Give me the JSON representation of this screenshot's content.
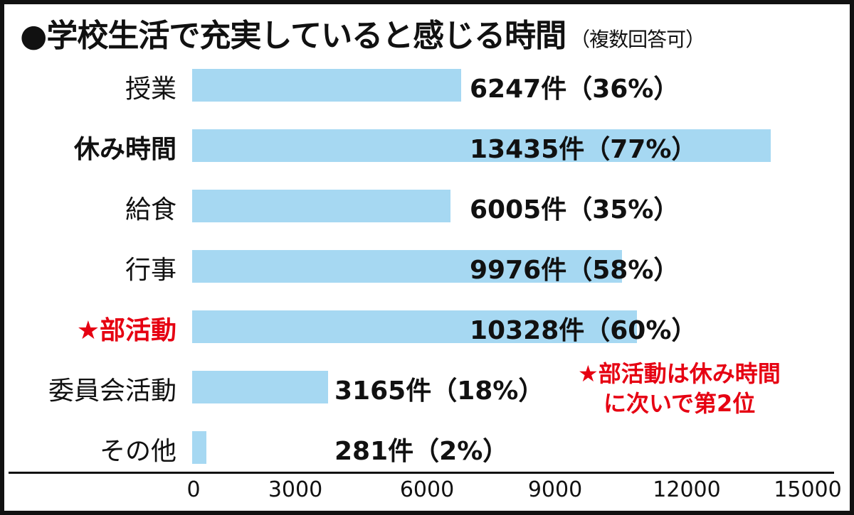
{
  "title": "●学校生活で充実していると感じる時間",
  "subtitle": "（複数回答可）",
  "note": [
    "★部活動は休み時間",
    "に次いで第2位"
  ],
  "colors": {
    "bar": "#a6d8f2",
    "highlight": "#e60012",
    "text": "#111111"
  },
  "chart_data": {
    "type": "bar",
    "orientation": "horizontal",
    "categories": [
      "授業",
      "休み時間",
      "給食",
      "行事",
      "★部活動",
      "委員会活動",
      "その他"
    ],
    "values": [
      6247,
      13435,
      6005,
      9976,
      10328,
      3165,
      281
    ],
    "value_labels": [
      "6247件（36%）",
      "13435件（77%）",
      "6005件（35%）",
      "9976件（58%）",
      "10328件（60%）",
      "3165件（18%）",
      "281件（2%）"
    ],
    "percentages": [
      36,
      77,
      35,
      58,
      60,
      18,
      2
    ],
    "xlim": [
      0,
      15000
    ],
    "xticks": [
      "0",
      "3000",
      "6000",
      "9000",
      "12000",
      "15000"
    ],
    "grid": false
  }
}
